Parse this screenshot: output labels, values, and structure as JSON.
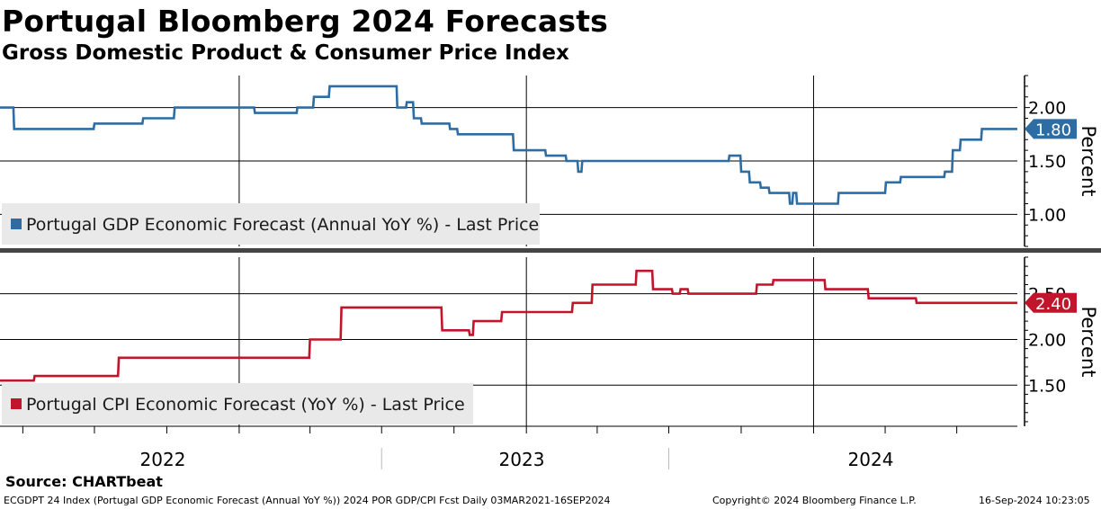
{
  "header": {
    "title": "Portugal Bloomberg 2024 Forecasts",
    "subtitle": "Gross Domestic Product & Consumer Price Index"
  },
  "source": "Source: CHARTbeat",
  "footer": {
    "left": "ECGDPT 24 Index (Portugal GDP Economic Forecast (Annual YoY %)) 2024 POR GDP/CPI Fcst  Daily 03MAR2021-16SEP2024",
    "copyright": "Copyright© 2024 Bloomberg Finance L.P.",
    "timestamp": "16-Sep-2024 10:23:05"
  },
  "colors": {
    "gdp": "#2e6da4",
    "cpi": "#c0152a",
    "grid": "#000000",
    "divider": "#444444"
  },
  "chart_data": [
    {
      "type": "line",
      "legend": "Portugal GDP Economic Forecast (Annual YoY %) - Last Price",
      "ylabel": "Percent",
      "yticks": [
        "2.00",
        "1.50",
        "1.00"
      ],
      "ylim": [
        0.7,
        2.3
      ],
      "last_value": "1.80",
      "series": [
        {
          "x": [
            "2021-03-03",
            "2021-03-20",
            "2021-03-21",
            "2021-06-30",
            "2021-07-01",
            "2021-08-31",
            "2021-09-01",
            "2021-10-10",
            "2021-10-11",
            "2022-01-20",
            "2022-01-21",
            "2022-03-15",
            "2022-03-16",
            "2022-04-05",
            "2022-04-06",
            "2022-04-25",
            "2022-04-26",
            "2022-07-20",
            "2022-07-21",
            "2022-08-01",
            "2022-08-02",
            "2022-08-10",
            "2022-08-11",
            "2022-08-20",
            "2022-08-21",
            "2022-09-25",
            "2022-09-26",
            "2022-10-05",
            "2022-10-06",
            "2022-12-15",
            "2022-12-16",
            "2023-01-25",
            "2023-01-26",
            "2023-02-20",
            "2023-02-21",
            "2023-03-07",
            "2023-03-08",
            "2023-03-12",
            "2023-03-13",
            "2023-09-15",
            "2023-09-16",
            "2023-09-30",
            "2023-10-01",
            "2023-10-11",
            "2023-10-12",
            "2023-10-25",
            "2023-10-26",
            "2023-11-05",
            "2023-11-06",
            "2023-12-01",
            "2023-12-02",
            "2023-12-05",
            "2023-12-06",
            "2023-12-10",
            "2023-12-11",
            "2024-02-01",
            "2024-02-02",
            "2024-04-01",
            "2024-04-02",
            "2024-04-20",
            "2024-04-21",
            "2024-06-15",
            "2024-06-16",
            "2024-06-25",
            "2024-06-26",
            "2024-07-05",
            "2024-07-06",
            "2024-08-01",
            "2024-08-02",
            "2024-09-16"
          ],
          "y": [
            2.0,
            2.0,
            1.8,
            1.8,
            1.85,
            1.85,
            1.9,
            1.9,
            2.0,
            2.0,
            1.95,
            1.95,
            2.0,
            2.0,
            2.1,
            2.1,
            2.2,
            2.2,
            2.0,
            2.0,
            2.05,
            2.05,
            1.9,
            1.9,
            1.85,
            1.85,
            1.8,
            1.8,
            1.75,
            1.75,
            1.6,
            1.6,
            1.55,
            1.55,
            1.5,
            1.5,
            1.4,
            1.4,
            1.5,
            1.5,
            1.55,
            1.55,
            1.4,
            1.4,
            1.3,
            1.3,
            1.25,
            1.25,
            1.2,
            1.2,
            1.1,
            1.1,
            1.2,
            1.2,
            1.1,
            1.1,
            1.2,
            1.2,
            1.3,
            1.3,
            1.35,
            1.35,
            1.4,
            1.4,
            1.6,
            1.6,
            1.7,
            1.7,
            1.8,
            1.8
          ]
        }
      ]
    },
    {
      "type": "line",
      "legend": "Portugal CPI Economic Forecast (YoY %) - Last Price",
      "ylabel": "Percent",
      "yticks": [
        "2.50",
        "2.00",
        "1.50"
      ],
      "ylim": [
        1.05,
        2.9
      ],
      "last_value": "2.40",
      "series": [
        {
          "x": [
            "2021-03-03",
            "2021-04-15",
            "2021-04-16",
            "2021-07-31",
            "2021-08-01",
            "2022-03-31",
            "2022-04-01",
            "2022-05-10",
            "2022-05-11",
            "2022-09-15",
            "2022-09-16",
            "2022-10-20",
            "2022-10-21",
            "2022-10-25",
            "2022-10-26",
            "2022-11-05",
            "2022-11-06",
            "2022-11-30",
            "2022-11-31",
            "2023-02-28",
            "2023-03-01",
            "2023-03-25",
            "2023-03-26",
            "2023-05-20",
            "2023-05-21",
            "2023-06-10",
            "2023-06-11",
            "2023-07-05",
            "2023-07-06",
            "2023-07-15",
            "2023-07-16",
            "2023-07-25",
            "2023-07-26",
            "2023-08-05",
            "2023-08-06",
            "2023-10-20",
            "2023-10-21",
            "2023-11-10",
            "2023-11-11",
            "2024-01-15",
            "2024-01-16",
            "2024-03-10",
            "2024-03-11",
            "2024-05-10",
            "2024-05-11",
            "2024-09-16"
          ],
          "y": [
            1.55,
            1.55,
            1.6,
            1.6,
            1.8,
            1.8,
            2.0,
            2.0,
            2.35,
            2.35,
            2.1,
            2.1,
            2.05,
            2.05,
            2.2,
            2.2,
            2.2,
            2.2,
            2.3,
            2.3,
            2.4,
            2.4,
            2.6,
            2.6,
            2.75,
            2.75,
            2.55,
            2.55,
            2.5,
            2.5,
            2.55,
            2.55,
            2.5,
            2.5,
            2.5,
            2.5,
            2.6,
            2.6,
            2.65,
            2.65,
            2.55,
            2.55,
            2.45,
            2.45,
            2.4,
            2.4
          ]
        }
      ]
    }
  ],
  "xaxis": {
    "year_labels": [
      "2022",
      "2023",
      "2024"
    ]
  }
}
